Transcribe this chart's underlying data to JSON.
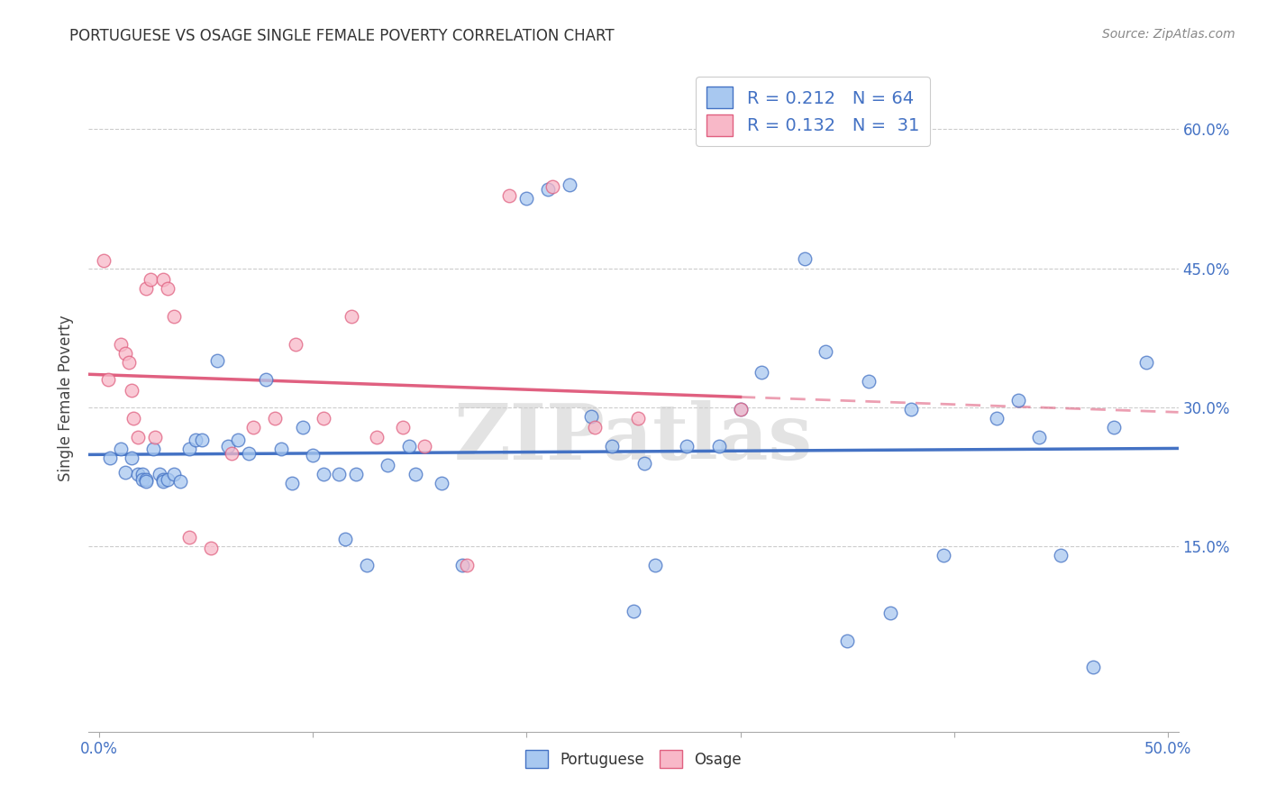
{
  "title": "PORTUGUESE VS OSAGE SINGLE FEMALE POVERTY CORRELATION CHART",
  "source": "Source: ZipAtlas.com",
  "ylabel": "Single Female Poverty",
  "watermark": "ZIPatlas",
  "legend_portuguese": "Portuguese",
  "legend_osage": "Osage",
  "R_portuguese": "0.212",
  "N_portuguese": "64",
  "R_osage": "0.132",
  "N_osage": "31",
  "xlim": [
    -0.005,
    0.505
  ],
  "ylim": [
    -0.05,
    0.67
  ],
  "yticks": [
    0.15,
    0.3,
    0.45,
    0.6
  ],
  "ytick_labels": [
    "15.0%",
    "30.0%",
    "45.0%",
    "60.0%"
  ],
  "color_portuguese": "#A8C8F0",
  "color_osage": "#F8B8C8",
  "line_portuguese": "#4472C4",
  "line_osage": "#E06080",
  "background_color": "#FFFFFF",
  "grid_color": "#CCCCCC",
  "portuguese_x": [
    0.005,
    0.01,
    0.012,
    0.015,
    0.018,
    0.02,
    0.02,
    0.022,
    0.022,
    0.025,
    0.028,
    0.03,
    0.03,
    0.032,
    0.035,
    0.038,
    0.042,
    0.045,
    0.048,
    0.055,
    0.06,
    0.065,
    0.07,
    0.078,
    0.085,
    0.09,
    0.095,
    0.1,
    0.105,
    0.112,
    0.115,
    0.12,
    0.125,
    0.135,
    0.145,
    0.148,
    0.16,
    0.17,
    0.2,
    0.21,
    0.22,
    0.23,
    0.24,
    0.25,
    0.255,
    0.26,
    0.275,
    0.29,
    0.3,
    0.31,
    0.33,
    0.34,
    0.35,
    0.36,
    0.37,
    0.38,
    0.395,
    0.42,
    0.43,
    0.44,
    0.45,
    0.465,
    0.475,
    0.49
  ],
  "portuguese_y": [
    0.245,
    0.255,
    0.23,
    0.245,
    0.228,
    0.228,
    0.222,
    0.222,
    0.22,
    0.255,
    0.228,
    0.222,
    0.22,
    0.222,
    0.228,
    0.22,
    0.255,
    0.265,
    0.265,
    0.35,
    0.258,
    0.265,
    0.25,
    0.33,
    0.255,
    0.218,
    0.278,
    0.248,
    0.228,
    0.228,
    0.158,
    0.228,
    0.13,
    0.238,
    0.258,
    0.228,
    0.218,
    0.13,
    0.525,
    0.535,
    0.54,
    0.29,
    0.258,
    0.08,
    0.24,
    0.13,
    0.258,
    0.258,
    0.298,
    0.338,
    0.46,
    0.36,
    0.048,
    0.328,
    0.078,
    0.298,
    0.14,
    0.288,
    0.308,
    0.268,
    0.14,
    0.02,
    0.278,
    0.348
  ],
  "osage_x": [
    0.002,
    0.004,
    0.01,
    0.012,
    0.014,
    0.015,
    0.016,
    0.018,
    0.022,
    0.024,
    0.026,
    0.03,
    0.032,
    0.035,
    0.042,
    0.052,
    0.062,
    0.072,
    0.082,
    0.092,
    0.105,
    0.118,
    0.13,
    0.142,
    0.152,
    0.172,
    0.192,
    0.212,
    0.232,
    0.252,
    0.3
  ],
  "osage_y": [
    0.458,
    0.33,
    0.368,
    0.358,
    0.348,
    0.318,
    0.288,
    0.268,
    0.428,
    0.438,
    0.268,
    0.438,
    0.428,
    0.398,
    0.16,
    0.148,
    0.25,
    0.278,
    0.288,
    0.368,
    0.288,
    0.398,
    0.268,
    0.278,
    0.258,
    0.13,
    0.528,
    0.538,
    0.278,
    0.288,
    0.298
  ]
}
